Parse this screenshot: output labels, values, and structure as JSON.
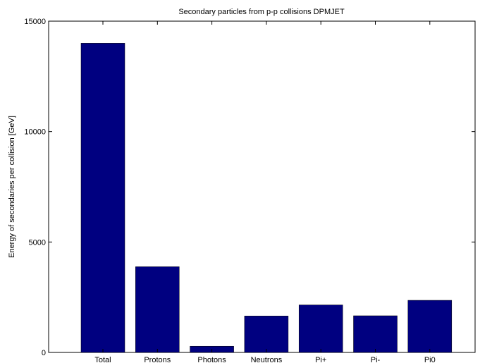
{
  "chart_data": {
    "type": "bar",
    "title": "Secondary particles from p-p collisions DPMJET",
    "xlabel": "",
    "ylabel": "Energy of secondaries per collision [GeV]",
    "categories": [
      "Total",
      "Protons",
      "Photons",
      "Neutrons",
      "Pi+",
      "Pi-",
      "Pi0"
    ],
    "values": [
      14000,
      3880,
      280,
      1650,
      2150,
      1660,
      2360
    ],
    "ylim": [
      0,
      15000
    ],
    "yticks": [
      0,
      5000,
      10000,
      15000
    ],
    "ytick_labels": [
      "0",
      "5000",
      "10000",
      "15000"
    ],
    "grid": false,
    "legend": "none",
    "bar_color": "#000080",
    "axis_color": "#000000"
  }
}
